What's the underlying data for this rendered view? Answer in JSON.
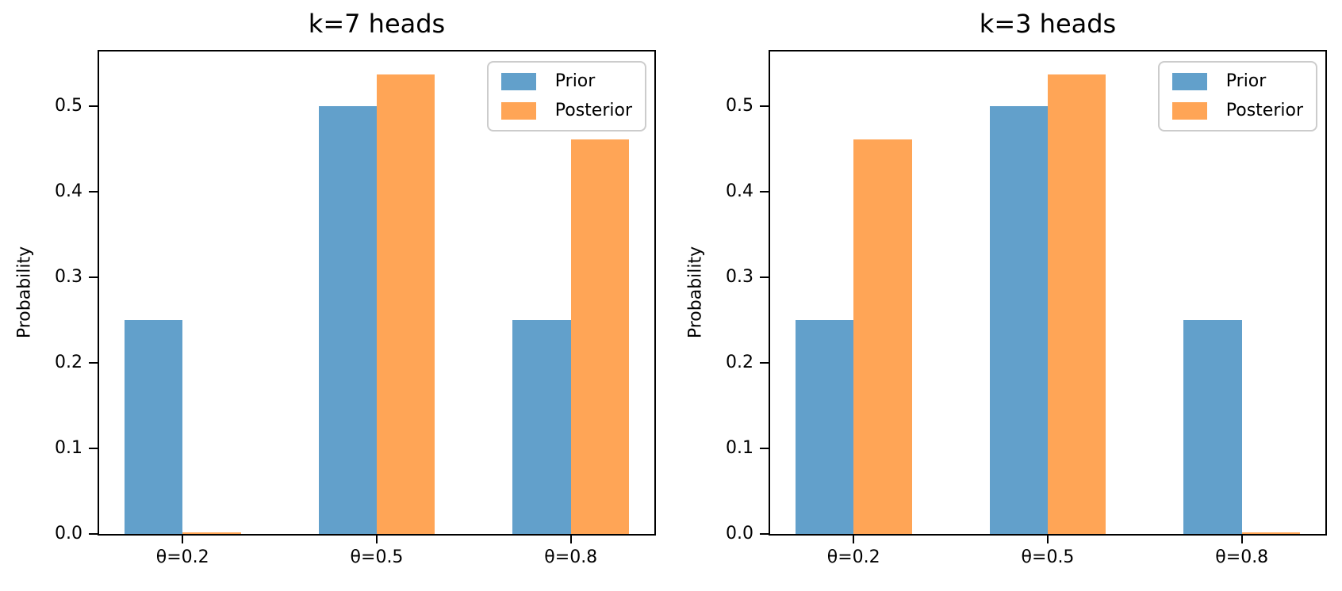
{
  "figure": {
    "background": "#ffffff",
    "text_color": "#000000",
    "spine_color": "#000000"
  },
  "chart_data": [
    {
      "type": "bar",
      "title": "k=7 heads",
      "xlabel": "",
      "ylabel": "Probability",
      "categories": [
        "θ=0.2",
        "θ=0.5",
        "θ=0.8"
      ],
      "series": [
        {
          "name": "Prior",
          "color": "#62a0cb",
          "values": [
            0.25,
            0.5,
            0.25
          ]
        },
        {
          "name": "Posterior",
          "color": "#ffa556",
          "values": [
            0.0018,
            0.537,
            0.4612
          ]
        }
      ],
      "ylim": [
        0,
        0.564
      ],
      "xlim": [
        -0.43,
        2.43
      ],
      "bar_width": 0.3,
      "yticks": [
        0.0,
        0.1,
        0.2,
        0.3,
        0.4,
        0.5
      ],
      "ytick_labels": [
        "0.0",
        "0.1",
        "0.2",
        "0.3",
        "0.4",
        "0.5"
      ],
      "grid": false,
      "legend": {
        "labels": [
          "Prior",
          "Posterior"
        ],
        "position": "upper-right"
      }
    },
    {
      "type": "bar",
      "title": "k=3 heads",
      "xlabel": "",
      "ylabel": "Probability",
      "categories": [
        "θ=0.2",
        "θ=0.5",
        "θ=0.8"
      ],
      "series": [
        {
          "name": "Prior",
          "color": "#62a0cb",
          "values": [
            0.25,
            0.5,
            0.25
          ]
        },
        {
          "name": "Posterior",
          "color": "#ffa556",
          "values": [
            0.4612,
            0.537,
            0.0018
          ]
        }
      ],
      "ylim": [
        0,
        0.564
      ],
      "xlim": [
        -0.43,
        2.43
      ],
      "bar_width": 0.3,
      "yticks": [
        0.0,
        0.1,
        0.2,
        0.3,
        0.4,
        0.5
      ],
      "ytick_labels": [
        "0.0",
        "0.1",
        "0.2",
        "0.3",
        "0.4",
        "0.5"
      ],
      "grid": false,
      "legend": {
        "labels": [
          "Prior",
          "Posterior"
        ],
        "position": "upper-right"
      }
    }
  ]
}
